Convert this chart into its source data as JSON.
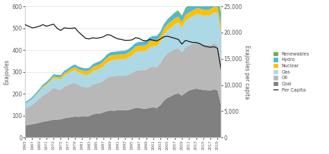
{
  "years": [
    1965,
    1966,
    1967,
    1968,
    1969,
    1970,
    1971,
    1972,
    1973,
    1974,
    1975,
    1976,
    1977,
    1978,
    1979,
    1980,
    1981,
    1982,
    1983,
    1984,
    1985,
    1986,
    1987,
    1988,
    1989,
    1990,
    1991,
    1992,
    1993,
    1994,
    1995,
    1996,
    1997,
    1998,
    1999,
    2000,
    2001,
    2002,
    2003,
    2004,
    2005,
    2006,
    2007,
    2008,
    2009,
    2010,
    2011,
    2012,
    2013,
    2014,
    2015,
    2016,
    2017,
    2018,
    2019,
    2020
  ],
  "coal": [
    55,
    58,
    61,
    64,
    68,
    72,
    75,
    78,
    82,
    82,
    83,
    88,
    91,
    93,
    96,
    95,
    96,
    96,
    98,
    106,
    109,
    110,
    115,
    121,
    124,
    123,
    125,
    125,
    125,
    126,
    130,
    136,
    136,
    132,
    132,
    136,
    138,
    135,
    149,
    170,
    182,
    189,
    198,
    202,
    192,
    204,
    215,
    220,
    223,
    221,
    217,
    216,
    215,
    220,
    217,
    149
  ],
  "oil": [
    77,
    82,
    88,
    99,
    110,
    120,
    126,
    135,
    145,
    140,
    136,
    145,
    148,
    153,
    154,
    145,
    138,
    134,
    133,
    137,
    138,
    141,
    145,
    151,
    155,
    158,
    158,
    159,
    158,
    162,
    165,
    169,
    172,
    176,
    178,
    185,
    186,
    187,
    192,
    199,
    203,
    205,
    207,
    207,
    198,
    209,
    207,
    208,
    210,
    210,
    209,
    207,
    207,
    210,
    207,
    191
  ],
  "gas": [
    22,
    24,
    26,
    29,
    32,
    36,
    39,
    42,
    44,
    46,
    47,
    50,
    53,
    56,
    58,
    57,
    57,
    56,
    57,
    60,
    62,
    63,
    66,
    70,
    72,
    74,
    74,
    75,
    76,
    78,
    81,
    85,
    87,
    87,
    88,
    92,
    94,
    96,
    97,
    102,
    106,
    109,
    113,
    117,
    113,
    120,
    124,
    126,
    130,
    132,
    133,
    135,
    138,
    142,
    145,
    137
  ],
  "nuclear": [
    1,
    1,
    2,
    3,
    4,
    5,
    6,
    7,
    8,
    9,
    10,
    11,
    12,
    13,
    14,
    15,
    16,
    17,
    18,
    19,
    20,
    21,
    22,
    23,
    24,
    22,
    22,
    21,
    22,
    22,
    24,
    25,
    25,
    25,
    25,
    27,
    27,
    27,
    26,
    27,
    28,
    28,
    27,
    27,
    25,
    27,
    26,
    26,
    27,
    27,
    26,
    26,
    26,
    27,
    27,
    25
  ],
  "hydro": [
    7,
    7,
    8,
    8,
    8,
    9,
    9,
    9,
    10,
    10,
    10,
    11,
    11,
    11,
    12,
    12,
    12,
    13,
    13,
    13,
    14,
    14,
    14,
    15,
    15,
    15,
    15,
    16,
    16,
    16,
    17,
    17,
    17,
    18,
    18,
    19,
    19,
    20,
    20,
    21,
    21,
    22,
    23,
    23,
    23,
    24,
    24,
    25,
    25,
    26,
    26,
    27,
    27,
    28,
    29,
    29
  ],
  "renewables": [
    0,
    0,
    0,
    0,
    0,
    0,
    0,
    0,
    0,
    0,
    0,
    0,
    0,
    0,
    0,
    0,
    0,
    0,
    0,
    0,
    0,
    0,
    0,
    0,
    0,
    0,
    0,
    0,
    0,
    0,
    0,
    0,
    0,
    0,
    0,
    0,
    0,
    0,
    1,
    1,
    2,
    3,
    4,
    5,
    6,
    8,
    10,
    12,
    16,
    19,
    22,
    25,
    28,
    33,
    38,
    30
  ],
  "per_capita": [
    21500,
    21200,
    20900,
    21000,
    21200,
    21500,
    21200,
    21400,
    21600,
    20800,
    20400,
    20900,
    20800,
    20800,
    20900,
    20100,
    19500,
    18900,
    18800,
    19000,
    18900,
    19000,
    19200,
    19600,
    19500,
    19100,
    18800,
    18700,
    18500,
    18500,
    18600,
    19000,
    18900,
    18500,
    18400,
    18700,
    18500,
    18400,
    18800,
    19200,
    19300,
    19100,
    18900,
    18700,
    17800,
    18500,
    18300,
    18100,
    18100,
    17900,
    17500,
    17300,
    17200,
    17300,
    17000,
    13000
  ],
  "coal_color": "#808080",
  "oil_color": "#b8b8b8",
  "gas_color": "#add8e6",
  "nuclear_color": "#ffc000",
  "hydro_color": "#4fb8d8",
  "renewables_color": "#70ad47",
  "per_capita_color": "#111111",
  "ylim_left": [
    0,
    600
  ],
  "ylim_right": [
    0,
    25000
  ],
  "yticks_left": [
    0,
    100,
    200,
    300,
    400,
    500,
    600
  ],
  "yticks_right": [
    0,
    5000,
    10000,
    15000,
    20000,
    25000
  ],
  "ylabel_left": "Exajoules",
  "ylabel_right": "Exajoules per capita",
  "bg_color": "#ffffff",
  "grid_color": "#e0e0e0"
}
